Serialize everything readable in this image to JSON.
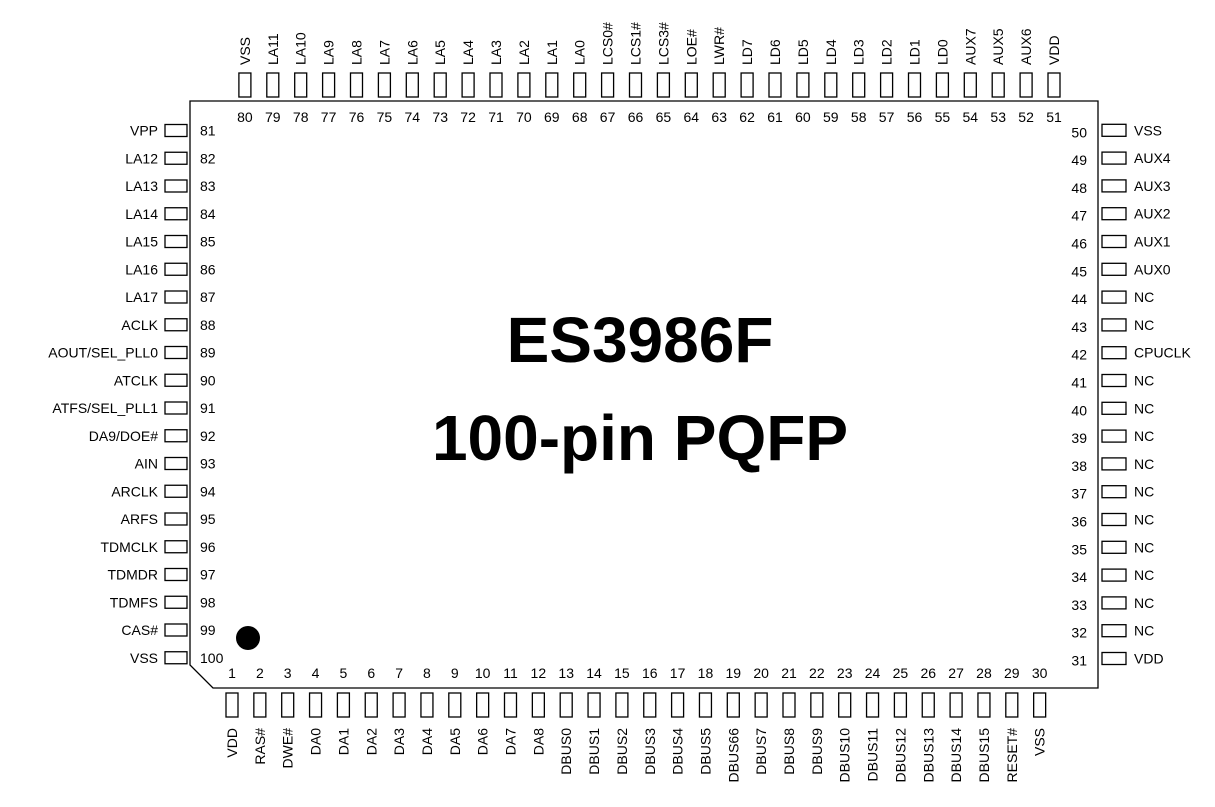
{
  "chip": {
    "name": "ES3986F",
    "package": "100-pin PQFP"
  },
  "pins": {
    "bottom": [
      {
        "num": "1",
        "name": "VDD"
      },
      {
        "num": "2",
        "name": "RAS#"
      },
      {
        "num": "3",
        "name": "DWE#"
      },
      {
        "num": "4",
        "name": "DA0"
      },
      {
        "num": "5",
        "name": "DA1"
      },
      {
        "num": "6",
        "name": "DA2"
      },
      {
        "num": "7",
        "name": "DA3"
      },
      {
        "num": "8",
        "name": "DA4"
      },
      {
        "num": "9",
        "name": "DA5"
      },
      {
        "num": "10",
        "name": "DA6"
      },
      {
        "num": "11",
        "name": "DA7"
      },
      {
        "num": "12",
        "name": "DA8"
      },
      {
        "num": "13",
        "name": "DBUS0"
      },
      {
        "num": "14",
        "name": "DBUS1"
      },
      {
        "num": "15",
        "name": "DBUS2"
      },
      {
        "num": "16",
        "name": "DBUS3"
      },
      {
        "num": "17",
        "name": "DBUS4"
      },
      {
        "num": "18",
        "name": "DBUS5"
      },
      {
        "num": "19",
        "name": "DBUS66"
      },
      {
        "num": "20",
        "name": "DBUS7"
      },
      {
        "num": "21",
        "name": "DBUS8"
      },
      {
        "num": "22",
        "name": "DBUS9"
      },
      {
        "num": "23",
        "name": "DBUS10"
      },
      {
        "num": "24",
        "name": "DBUS11"
      },
      {
        "num": "25",
        "name": "DBUS12"
      },
      {
        "num": "26",
        "name": "DBUS13"
      },
      {
        "num": "27",
        "name": "DBUS14"
      },
      {
        "num": "28",
        "name": "DBUS15"
      },
      {
        "num": "29",
        "name": "RESET#"
      },
      {
        "num": "30",
        "name": "VSS"
      }
    ],
    "right": [
      {
        "num": "31",
        "name": "VDD"
      },
      {
        "num": "32",
        "name": "NC"
      },
      {
        "num": "33",
        "name": "NC"
      },
      {
        "num": "34",
        "name": "NC"
      },
      {
        "num": "35",
        "name": "NC"
      },
      {
        "num": "36",
        "name": "NC"
      },
      {
        "num": "37",
        "name": "NC"
      },
      {
        "num": "38",
        "name": "NC"
      },
      {
        "num": "39",
        "name": "NC"
      },
      {
        "num": "40",
        "name": "NC"
      },
      {
        "num": "41",
        "name": "NC"
      },
      {
        "num": "42",
        "name": "CPUCLK"
      },
      {
        "num": "43",
        "name": "NC"
      },
      {
        "num": "44",
        "name": "NC"
      },
      {
        "num": "45",
        "name": "AUX0"
      },
      {
        "num": "46",
        "name": "AUX1"
      },
      {
        "num": "47",
        "name": "AUX2"
      },
      {
        "num": "48",
        "name": "AUX3"
      },
      {
        "num": "49",
        "name": "AUX4"
      },
      {
        "num": "50",
        "name": "VSS"
      }
    ],
    "top": [
      {
        "num": "51",
        "name": "VDD"
      },
      {
        "num": "52",
        "name": "AUX6"
      },
      {
        "num": "53",
        "name": "AUX5"
      },
      {
        "num": "54",
        "name": "AUX7"
      },
      {
        "num": "55",
        "name": "LD0"
      },
      {
        "num": "56",
        "name": "LD1"
      },
      {
        "num": "57",
        "name": "LD2"
      },
      {
        "num": "58",
        "name": "LD3"
      },
      {
        "num": "59",
        "name": "LD4"
      },
      {
        "num": "60",
        "name": "LD5"
      },
      {
        "num": "61",
        "name": "LD6"
      },
      {
        "num": "62",
        "name": "LD7"
      },
      {
        "num": "63",
        "name": "LWR#"
      },
      {
        "num": "64",
        "name": "LOE#"
      },
      {
        "num": "65",
        "name": "LCS3#"
      },
      {
        "num": "66",
        "name": "LCS1#"
      },
      {
        "num": "67",
        "name": "LCS0#"
      },
      {
        "num": "68",
        "name": "LA0"
      },
      {
        "num": "69",
        "name": "LA1"
      },
      {
        "num": "70",
        "name": "LA2"
      },
      {
        "num": "71",
        "name": "LA3"
      },
      {
        "num": "72",
        "name": "LA4"
      },
      {
        "num": "73",
        "name": "LA5"
      },
      {
        "num": "74",
        "name": "LA6"
      },
      {
        "num": "75",
        "name": "LA7"
      },
      {
        "num": "76",
        "name": "LA8"
      },
      {
        "num": "77",
        "name": "LA9"
      },
      {
        "num": "78",
        "name": "LA10"
      },
      {
        "num": "79",
        "name": "LA11"
      },
      {
        "num": "80",
        "name": "VSS"
      }
    ],
    "left": [
      {
        "num": "81",
        "name": "VPP"
      },
      {
        "num": "82",
        "name": "LA12"
      },
      {
        "num": "83",
        "name": "LA13"
      },
      {
        "num": "84",
        "name": "LA14"
      },
      {
        "num": "85",
        "name": "LA15"
      },
      {
        "num": "86",
        "name": "LA16"
      },
      {
        "num": "87",
        "name": "LA17"
      },
      {
        "num": "88",
        "name": "ACLK"
      },
      {
        "num": "89",
        "name": "AOUT/SEL_PLL0"
      },
      {
        "num": "90",
        "name": "ATCLK"
      },
      {
        "num": "91",
        "name": "ATFS/SEL_PLL1"
      },
      {
        "num": "92",
        "name": "DA9/DOE#"
      },
      {
        "num": "93",
        "name": "AIN"
      },
      {
        "num": "94",
        "name": "ARCLK"
      },
      {
        "num": "95",
        "name": "ARFS"
      },
      {
        "num": "96",
        "name": "TDMCLK"
      },
      {
        "num": "97",
        "name": "TDMDR"
      },
      {
        "num": "98",
        "name": "TDMFS"
      },
      {
        "num": "99",
        "name": "CAS#"
      },
      {
        "num": "100",
        "name": "VSS"
      }
    ]
  }
}
